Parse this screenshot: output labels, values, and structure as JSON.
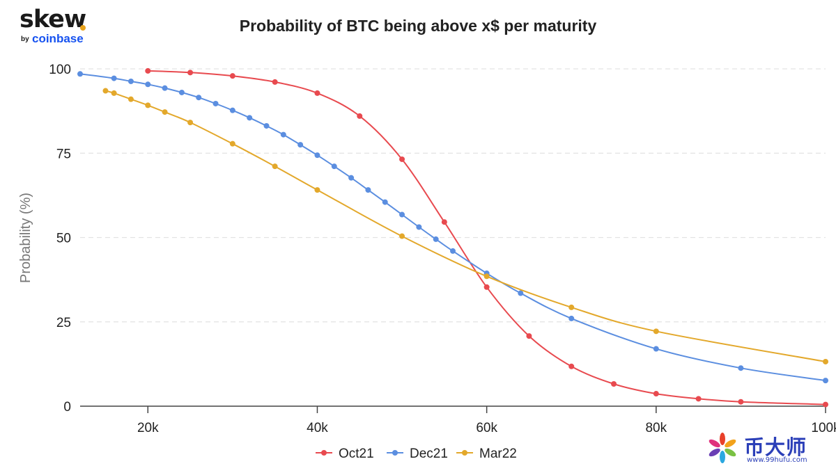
{
  "logo": {
    "brand": "skew",
    "by": "by",
    "company": "coinbase"
  },
  "watermark": {
    "text": "币大师",
    "url": "www.99hufu.com"
  },
  "colors": {
    "Oct21": "#e84a4f",
    "Dec21": "#5b8ee0",
    "Mar22": "#e3a82b"
  },
  "chart_data": {
    "type": "line",
    "title": "Probability of BTC being above x$ per maturity",
    "xlabel": "",
    "ylabel": "Probability (%)",
    "xlim": [
      12000,
      100000
    ],
    "ylim": [
      0,
      100
    ],
    "x_ticks": [
      20000,
      40000,
      60000,
      80000,
      100000
    ],
    "x_tick_labels": [
      "20k",
      "40k",
      "60k",
      "80k",
      "100k"
    ],
    "y_ticks": [
      0,
      25,
      50,
      75,
      100
    ],
    "y_tick_labels": [
      "0",
      "25",
      "50",
      "75",
      "100"
    ],
    "grid": true,
    "legend_position": "bottom-center",
    "series": [
      {
        "name": "Oct21",
        "x": [
          20000,
          25000,
          30000,
          35000,
          40000,
          45000,
          50000,
          55000,
          60000,
          65000,
          70000,
          75000,
          80000,
          85000,
          90000,
          100000
        ],
        "y": [
          99.4,
          98.9,
          97.9,
          96.1,
          92.8,
          86,
          73.2,
          54.6,
          35.3,
          20.8,
          11.8,
          6.6,
          3.7,
          2.2,
          1.3,
          0.5
        ]
      },
      {
        "name": "Dec21",
        "x": [
          12000,
          16000,
          18000,
          20000,
          22000,
          24000,
          26000,
          28000,
          30000,
          32000,
          34000,
          36000,
          38000,
          40000,
          42000,
          44000,
          46000,
          48000,
          50000,
          52000,
          54000,
          56000,
          60000,
          64000,
          70000,
          80000,
          90000,
          100000
        ],
        "y": [
          98.5,
          97.2,
          96.3,
          95.4,
          94.3,
          93,
          91.5,
          89.7,
          87.7,
          85.5,
          83.1,
          80.5,
          77.5,
          74.4,
          71.1,
          67.7,
          64.1,
          60.5,
          56.8,
          53.1,
          49.5,
          46,
          39.4,
          33.5,
          26,
          17,
          11.3,
          7.6
        ]
      },
      {
        "name": "Mar22",
        "x": [
          15000,
          16000,
          18000,
          20000,
          22000,
          25000,
          30000,
          35000,
          40000,
          50000,
          60000,
          70000,
          80000,
          100000
        ],
        "y": [
          93.5,
          92.8,
          91,
          89.2,
          87.2,
          84.1,
          77.8,
          71.1,
          64.1,
          50.4,
          38.5,
          29.3,
          22.2,
          13.2
        ]
      }
    ]
  }
}
